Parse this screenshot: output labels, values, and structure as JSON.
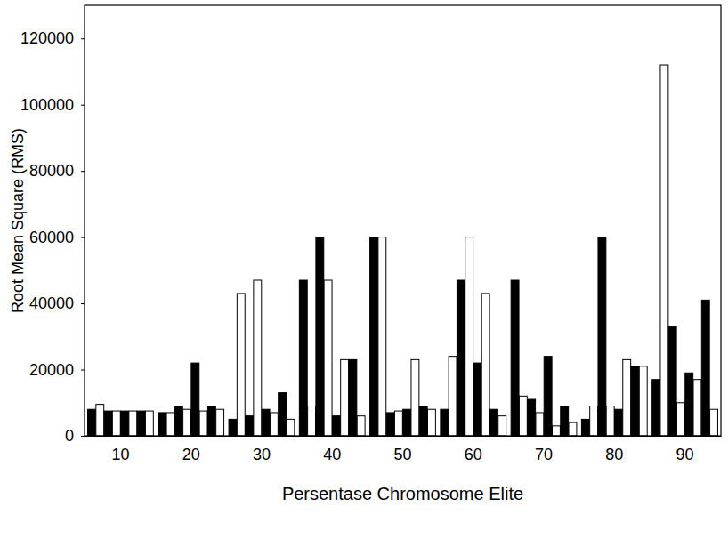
{
  "chart_data": {
    "type": "bar",
    "x_label": "Persentase Chromosome Elite",
    "y_label": "Root Mean Square (RMS)",
    "categories": [
      "10",
      "20",
      "30",
      "40",
      "50",
      "60",
      "70",
      "80",
      "90"
    ],
    "series": [
      {
        "color": "#000000",
        "values": [
          8000,
          7000,
          5000,
          47000,
          60000,
          8000,
          47000,
          5000,
          17000
        ]
      },
      {
        "color": "#ffffff",
        "values": [
          9500,
          7000,
          43000,
          9000,
          60000,
          24000,
          12000,
          9000,
          112000
        ]
      },
      {
        "color": "#000000",
        "values": [
          7500,
          9000,
          6000,
          60000,
          7000,
          47000,
          11000,
          60000,
          33000
        ]
      },
      {
        "color": "#ffffff",
        "values": [
          7500,
          8000,
          47000,
          47000,
          7500,
          60000,
          7000,
          9000,
          10000
        ]
      },
      {
        "color": "#000000",
        "values": [
          7500,
          22000,
          8000,
          6000,
          8000,
          22000,
          24000,
          8000,
          19000
        ]
      },
      {
        "color": "#ffffff",
        "values": [
          7500,
          7500,
          7000,
          23000,
          23000,
          43000,
          3000,
          23000,
          17000
        ]
      },
      {
        "color": "#000000",
        "values": [
          7500,
          9000,
          13000,
          23000,
          9000,
          8000,
          9000,
          21000,
          41000
        ]
      },
      {
        "color": "#ffffff",
        "values": [
          7500,
          8000,
          5000,
          6000,
          8000,
          6000,
          4000,
          21000,
          8000
        ]
      }
    ],
    "ylim": [
      0,
      130000
    ],
    "yticks": [
      0,
      20000,
      40000,
      60000,
      80000,
      100000,
      120000
    ],
    "grid": false
  }
}
